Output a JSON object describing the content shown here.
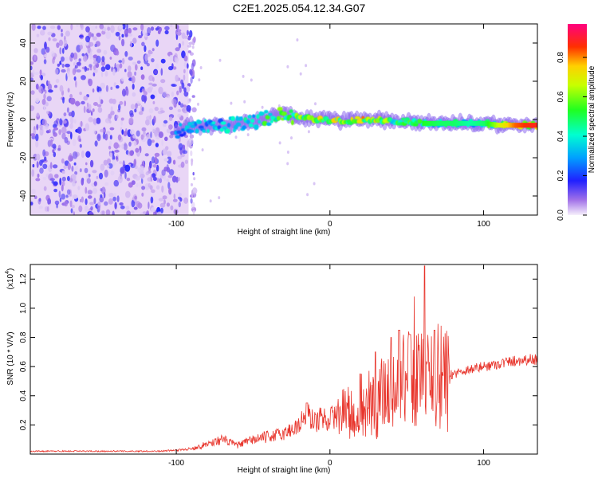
{
  "title": "C2E1.2025.054.12.34.G07",
  "colors": {
    "snr_line": "#e8352c",
    "spectrum_background": "#e9d6f6"
  },
  "chart_data": [
    {
      "type": "heatmap",
      "title": "C2E1.2025.054.12.34.G07",
      "xlabel": "Height of straight line (km)",
      "ylabel": "Frequency (Hz)",
      "xlim": [
        -195,
        135
      ],
      "ylim": [
        -50,
        50
      ],
      "xticks": [
        -100,
        0,
        100
      ],
      "xtick_labels": [
        "-100",
        "0",
        "100"
      ],
      "yticks": [
        -40,
        -20,
        0,
        20,
        40
      ],
      "ytick_labels": [
        "-40",
        "-20",
        "0",
        "20",
        "40"
      ],
      "colorbar": {
        "label": "Normalized spectral amplitude",
        "range": [
          0,
          0.97
        ],
        "ticks": [
          0.0,
          0.2,
          0.4,
          0.6,
          0.8
        ],
        "tick_labels": [
          "0.0",
          "0.2",
          "0.4",
          "0.6",
          "0.8"
        ],
        "colormap": "rainbow (purple-blue-cyan-green-yellow-red-magenta)"
      },
      "noise_region_x": [
        -195,
        -92
      ],
      "ridge": {
        "description": "Spectral ridge centered near 0 Hz, amplitude rising with height",
        "points": [
          {
            "x": -100,
            "y": -6,
            "amp": 0.3
          },
          {
            "x": -90,
            "y": -3,
            "amp": 0.35
          },
          {
            "x": -80,
            "y": -4,
            "amp": 0.4
          },
          {
            "x": -70,
            "y": -3,
            "amp": 0.4
          },
          {
            "x": -60,
            "y": -2,
            "amp": 0.45
          },
          {
            "x": -50,
            "y": -1,
            "amp": 0.5
          },
          {
            "x": -40,
            "y": 1,
            "amp": 0.55
          },
          {
            "x": -30,
            "y": 3,
            "amp": 0.6
          },
          {
            "x": -20,
            "y": 1,
            "amp": 0.65
          },
          {
            "x": -10,
            "y": 0,
            "amp": 0.7
          },
          {
            "x": 0,
            "y": 0,
            "amp": 0.78
          },
          {
            "x": 10,
            "y": -1,
            "amp": 0.72
          },
          {
            "x": 20,
            "y": 0,
            "amp": 0.78
          },
          {
            "x": 30,
            "y": 0,
            "amp": 0.72
          },
          {
            "x": 40,
            "y": -1,
            "amp": 0.6
          },
          {
            "x": 50,
            "y": -1,
            "amp": 0.55
          },
          {
            "x": 60,
            "y": -2,
            "amp": 0.55
          },
          {
            "x": 70,
            "y": -2,
            "amp": 0.5
          },
          {
            "x": 80,
            "y": -2,
            "amp": 0.5
          },
          {
            "x": 90,
            "y": -2,
            "amp": 0.45
          },
          {
            "x": 100,
            "y": -2,
            "amp": 0.5
          },
          {
            "x": 110,
            "y": -3,
            "amp": 0.7
          },
          {
            "x": 120,
            "y": -3,
            "amp": 0.85
          },
          {
            "x": 130,
            "y": -3,
            "amp": 0.9
          }
        ]
      }
    },
    {
      "type": "line",
      "xlabel": "Height of straight line (km)",
      "ylabel": "SNR (10 * V/V)",
      "y_multiplier": "(x10^4)",
      "y_multiplier_base": "(x10",
      "y_multiplier_exp": "4",
      "y_multiplier_close": ")",
      "xlim": [
        -195,
        135
      ],
      "ylim": [
        0,
        1.3
      ],
      "xticks": [
        -100,
        0,
        100
      ],
      "xtick_labels": [
        "-100",
        "0",
        "100"
      ],
      "yticks": [
        0.2,
        0.4,
        0.6,
        0.8,
        1.0,
        1.2
      ],
      "ytick_labels": [
        "0.2",
        "0.4",
        "0.6",
        "0.8",
        "1.0",
        "1.2"
      ],
      "series": [
        {
          "name": "SNR",
          "envelope": {
            "x": [
              -195,
              -140,
              -110,
              -95,
              -85,
              -80,
              -70,
              -60,
              -50,
              -40,
              -30,
              -20,
              -15,
              -10,
              -5,
              0,
              10,
              20,
              30,
              40,
              50,
              60,
              70,
              75,
              78,
              80,
              90,
              100,
              110,
              120,
              130,
              135
            ],
            "y": [
              0.02,
              0.02,
              0.02,
              0.03,
              0.05,
              0.07,
              0.1,
              0.06,
              0.1,
              0.12,
              0.14,
              0.2,
              0.28,
              0.22,
              0.25,
              0.24,
              0.3,
              0.34,
              0.4,
              0.48,
              0.55,
              0.55,
              0.58,
              0.56,
              0.54,
              0.55,
              0.58,
              0.6,
              0.62,
              0.64,
              0.65,
              0.65
            ]
          },
          "peaks": [
            {
              "x": -15,
              "y": 0.35
            },
            {
              "x": 20,
              "y": 0.55
            },
            {
              "x": 30,
              "y": 0.7
            },
            {
              "x": 40,
              "y": 0.8
            },
            {
              "x": 45,
              "y": 0.85
            },
            {
              "x": 52,
              "y": 0.82
            },
            {
              "x": 55,
              "y": 1.08
            },
            {
              "x": 62,
              "y": 1.29
            },
            {
              "x": 68,
              "y": 0.85
            }
          ]
        }
      ]
    }
  ]
}
